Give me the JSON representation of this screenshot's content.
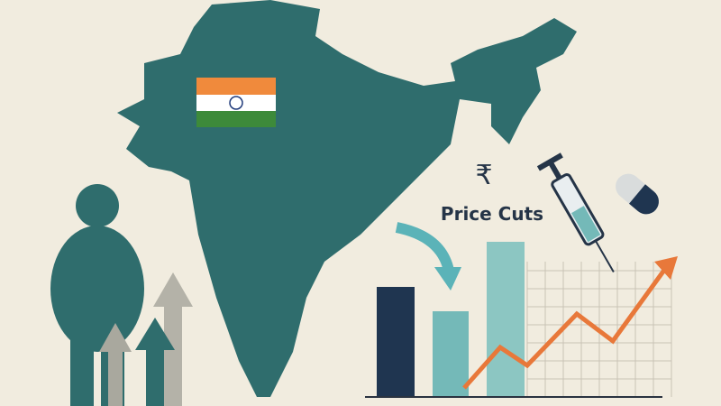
{
  "label": {
    "symbol": "₹",
    "text": "Price Cuts"
  }
}
